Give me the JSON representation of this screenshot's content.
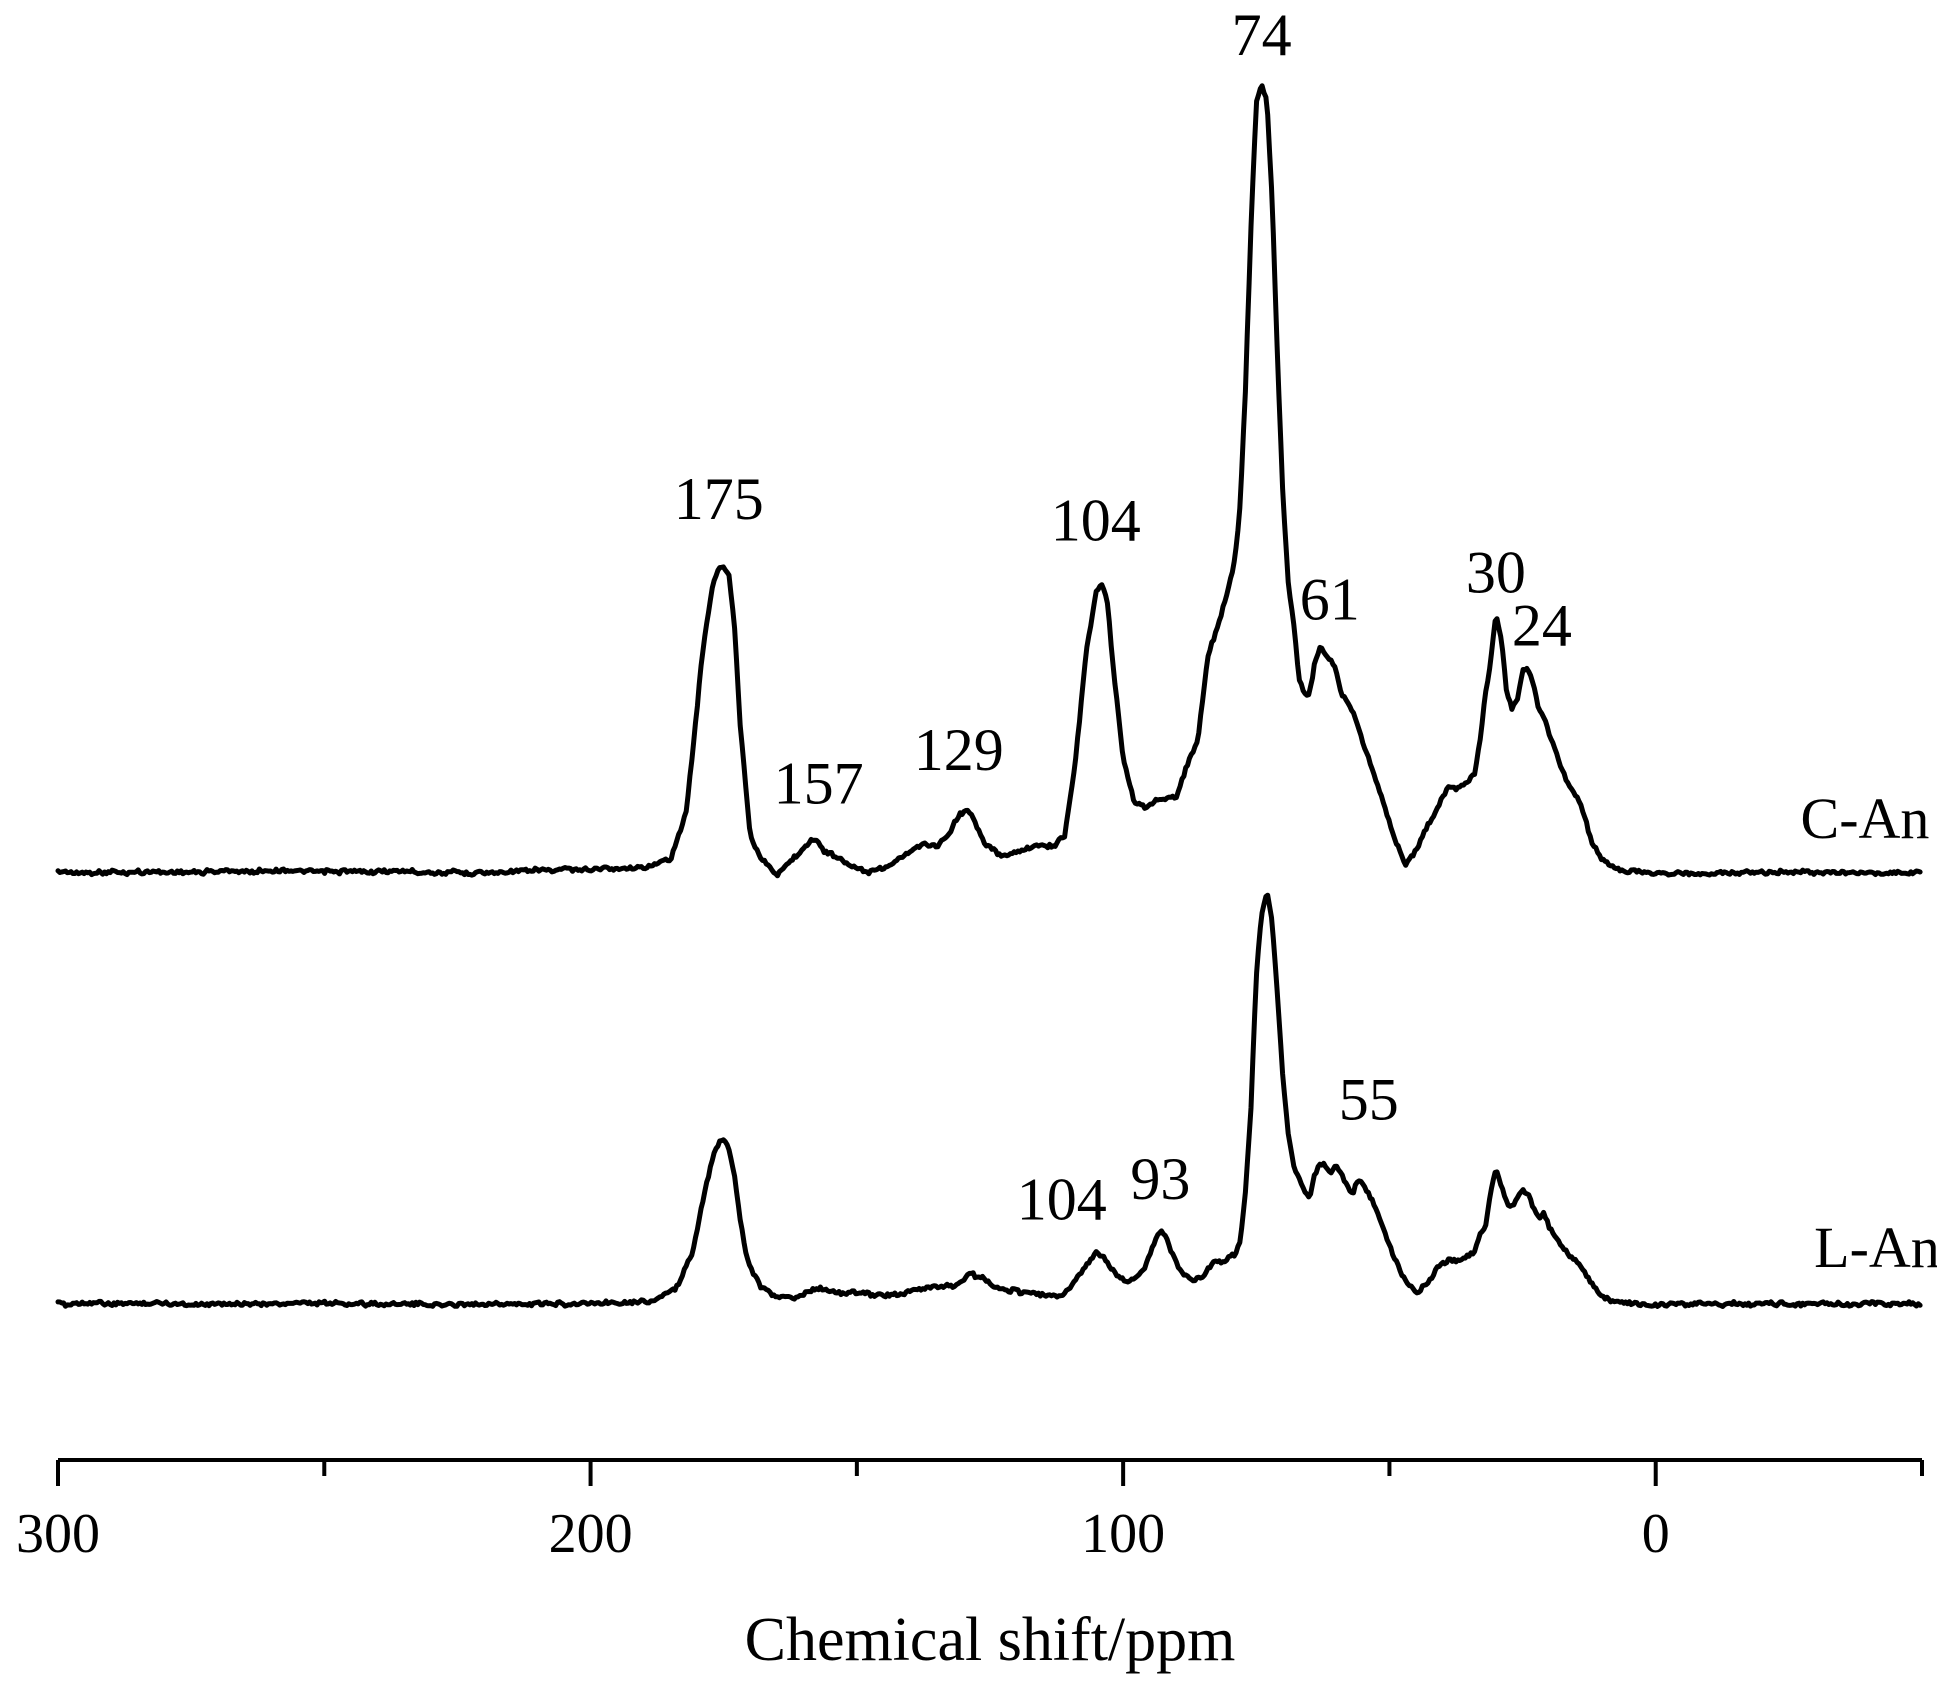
{
  "chart_data": {
    "type": "line",
    "xlabel": "Chemical shift/ppm",
    "xlim": [
      300,
      -50
    ],
    "x_reversed": true,
    "grid": false,
    "x_ticks": [
      300,
      200,
      100,
      0
    ],
    "x_tick_labels": [
      "300",
      "200",
      "100",
      "0"
    ],
    "x_minor_ticks": [
      250,
      150,
      50,
      -50
    ],
    "y_axis_shown": false,
    "series": [
      {
        "name": "C-An",
        "color": "#000000",
        "x": [
          300,
          260,
          220,
          200,
          190,
          185,
          182,
          179,
          177,
          176,
          175,
          174,
          173,
          172,
          170,
          168,
          165,
          162,
          160,
          158,
          157,
          156,
          154,
          152,
          148,
          145,
          142,
          139,
          137,
          135,
          133,
          131,
          129,
          128,
          126,
          123,
          120,
          116,
          113,
          111,
          109,
          107,
          105,
          104,
          103,
          102,
          100,
          98,
          96,
          94,
          92,
          90,
          88,
          86,
          84,
          82,
          80,
          79,
          78,
          77,
          76,
          75,
          74,
          73,
          72,
          71,
          70,
          69,
          68,
          67,
          66,
          65,
          64,
          63,
          62,
          61,
          60,
          59,
          58,
          57,
          56,
          55,
          53,
          51,
          49,
          47,
          45,
          43,
          41,
          39,
          37,
          35,
          34,
          33,
          32,
          31,
          30,
          29,
          28,
          27,
          26,
          25,
          24,
          23,
          22,
          21,
          20,
          18,
          16,
          14,
          12,
          10,
          8,
          5,
          0,
          -20,
          -50
        ],
        "y": [
          0.3,
          0.5,
          0.3,
          0.8,
          0.8,
          2.0,
          8.0,
          28,
          37,
          39,
          39,
          38,
          32,
          20,
          5,
          2.0,
          0.0,
          2.0,
          3.5,
          4.5,
          4.0,
          2.8,
          2.5,
          1.5,
          0.4,
          0.8,
          2.0,
          3.5,
          4.0,
          3.5,
          5.0,
          7.5,
          8.0,
          7.0,
          4.0,
          2.5,
          3.0,
          3.8,
          3.5,
          5.0,
          14,
          28,
          36,
          37,
          35,
          27,
          15,
          9.5,
          8.5,
          9.5,
          9.5,
          10,
          14,
          17,
          28,
          32,
          37,
          40,
          47,
          62,
          82,
          98,
          100,
          98,
          85,
          65,
          48,
          37,
          32,
          25,
          23,
          23,
          27,
          29,
          28,
          27,
          26,
          23,
          22,
          21,
          19,
          17,
          13,
          9,
          4.5,
          1.5,
          3.0,
          6.0,
          8.5,
          11,
          11,
          12,
          13,
          17,
          23,
          27,
          33,
          30,
          23,
          21,
          22,
          26,
          26,
          24,
          21,
          20,
          18,
          14,
          11,
          9.0,
          4.0,
          2.0,
          0.9,
          0.5,
          0.2,
          0.3,
          0.3
        ]
      },
      {
        "name": "L-An",
        "color": "#000000",
        "x": [
          300,
          260,
          220,
          200,
          192,
          188,
          184,
          181,
          179,
          177,
          176,
          175,
          174,
          173,
          172,
          171,
          170,
          168,
          166,
          164,
          162,
          160,
          158,
          156,
          154,
          150,
          146,
          142,
          138,
          135,
          132,
          130,
          129,
          127,
          125,
          121,
          117,
          112,
          110,
          108,
          106,
          105,
          104,
          103,
          101,
          99,
          97,
          96,
          95,
          94,
          93,
          92,
          91,
          89,
          87,
          85,
          83,
          81,
          79,
          78,
          77,
          76,
          75,
          74,
          73,
          72,
          71,
          70,
          69,
          68,
          66,
          65,
          64,
          63,
          62,
          61,
          60,
          59,
          58,
          57,
          56,
          55,
          53,
          51,
          49,
          47,
          45,
          43,
          41,
          39,
          37,
          35,
          34,
          33,
          32,
          31,
          30,
          29,
          28,
          27,
          26,
          25,
          24,
          23,
          22,
          21,
          20,
          18,
          16,
          14,
          12,
          10,
          8,
          5,
          0,
          -20,
          -50
        ],
        "y": [
          0.3,
          0.4,
          0.2,
          0.4,
          0.5,
          1.0,
          4.0,
          12,
          25,
          36,
          39,
          40,
          38,
          32,
          22,
          14,
          9,
          4.5,
          2.5,
          2.0,
          1.5,
          2.5,
          4.0,
          3.8,
          2.8,
          3.0,
          2.6,
          2.6,
          4.0,
          4.5,
          4.5,
          6.0,
          7.5,
          7.0,
          5.0,
          3.5,
          3.0,
          1.8,
          4.0,
          8.0,
          11,
          13,
          12,
          10,
          7.0,
          5.5,
          7.0,
          9.0,
          12,
          16,
          18,
          17,
          13,
          8.0,
          6.0,
          7.0,
          10,
          11,
          12,
          16,
          28,
          48,
          80,
          95,
          100,
          93,
          75,
          55,
          42,
          34,
          28,
          26,
          32,
          34,
          34,
          32,
          34,
          32,
          29,
          27,
          30,
          29,
          25,
          18,
          11,
          6.0,
          3.0,
          5.0,
          9.0,
          11,
          11,
          12,
          13,
          17,
          19,
          27,
          33,
          29,
          25,
          24,
          26,
          28,
          27,
          24,
          21,
          22,
          19,
          15,
          12,
          9.0,
          5.0,
          2.0,
          0.7,
          0.5,
          0.2,
          0.3,
          0.3
        ]
      }
    ],
    "annotations": [
      {
        "text": "74",
        "x": 74,
        "series": "C-An"
      },
      {
        "text": "175",
        "x": 175,
        "series": "C-An"
      },
      {
        "text": "157",
        "x": 157,
        "series": "C-An"
      },
      {
        "text": "129",
        "x": 129,
        "series": "C-An"
      },
      {
        "text": "104",
        "x": 104,
        "series": "C-An"
      },
      {
        "text": "61",
        "x": 61,
        "series": "C-An"
      },
      {
        "text": "30",
        "x": 30,
        "series": "C-An"
      },
      {
        "text": "24",
        "x": 24,
        "series": "C-An"
      },
      {
        "text": "104",
        "x": 104,
        "series": "L-An"
      },
      {
        "text": "93",
        "x": 93,
        "series": "L-An"
      },
      {
        "text": "55",
        "x": 55,
        "series": "L-An"
      }
    ]
  }
}
